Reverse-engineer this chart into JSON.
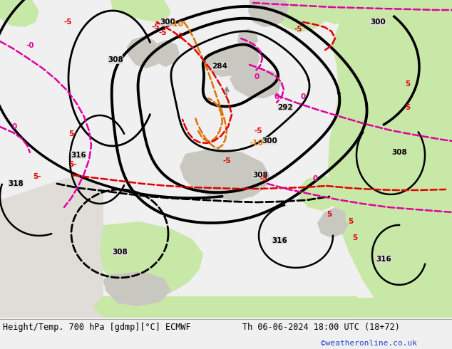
{
  "title_left": "Height/Temp. 700 hPa [gdmp][°C] ECMWF",
  "title_right": "Th 06-06-2024 18:00 UTC (18+72)",
  "credit": "©weatheronline.co.uk",
  "bg_color": "#e0ddd8",
  "green1": "#c8e8a8",
  "gray1": "#c8c8c0",
  "gray2": "#d8d5d0",
  "black": "#000000",
  "red": "#e00000",
  "orange": "#e07000",
  "magenta": "#e000a0",
  "figsize": [
    6.34,
    4.9
  ],
  "dpi": 100
}
